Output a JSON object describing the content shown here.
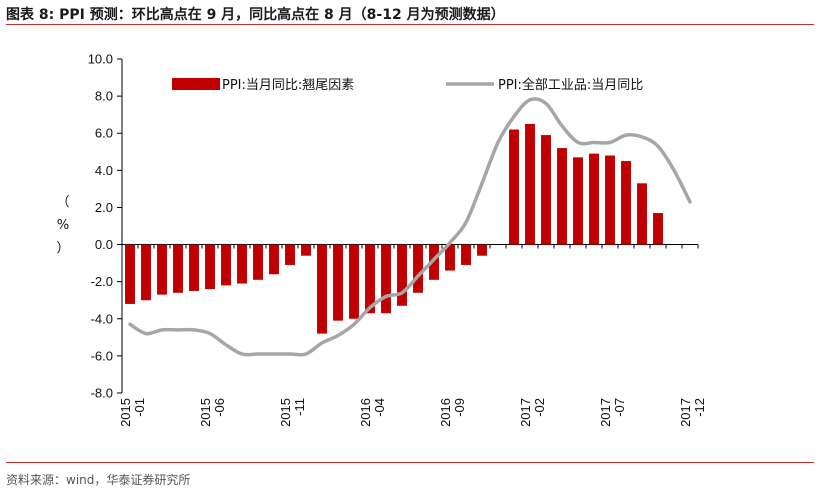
{
  "header": {
    "title": "图表 8:   PPI 预测：环比高点在 9 月，同比高点在 8 月（8-12 月为预测数据）"
  },
  "footer": {
    "source": "资料来源：wind，华泰证券研究所"
  },
  "colors": {
    "bar": "#c00000",
    "line": "#a6a6a6",
    "accent_rule": "#c8302c",
    "axis": "#000000"
  },
  "chart_data": {
    "type": "bar",
    "title": "PPI 预测：环比高点在 9 月，同比高点在 8 月（8-12 月为预测数据）",
    "ylabel": "（%）",
    "ylabel_chars": [
      "（",
      "%",
      "）"
    ],
    "ylim": [
      -8.0,
      10.0
    ],
    "yticks": [
      -8.0,
      -6.0,
      -4.0,
      -2.0,
      0.0,
      2.0,
      4.0,
      6.0,
      8.0,
      10.0
    ],
    "ytick_labels": [
      "-8.0",
      "-6.0",
      "-4.0",
      "-2.0",
      "0.0",
      "2.0",
      "4.0",
      "6.0",
      "8.0",
      "10.0"
    ],
    "categories": [
      "2015-01",
      "2015-02",
      "2015-03",
      "2015-04",
      "2015-05",
      "2015-06",
      "2015-07",
      "2015-08",
      "2015-09",
      "2015-10",
      "2015-11",
      "2015-12",
      "2016-01",
      "2016-02",
      "2016-03",
      "2016-04",
      "2016-05",
      "2016-06",
      "2016-07",
      "2016-08",
      "2016-09",
      "2016-10",
      "2016-11",
      "2016-12",
      "2017-01",
      "2017-02",
      "2017-03",
      "2017-04",
      "2017-05",
      "2017-06",
      "2017-07",
      "2017-08",
      "2017-09",
      "2017-10",
      "2017-11",
      "2017-12"
    ],
    "xtick_labels": [
      {
        "index": 0,
        "year": "2015",
        "month": "-01"
      },
      {
        "index": 5,
        "year": "2015",
        "month": "-06"
      },
      {
        "index": 10,
        "year": "2015",
        "month": "-11"
      },
      {
        "index": 15,
        "year": "2016",
        "month": "-04"
      },
      {
        "index": 20,
        "year": "2016",
        "month": "-09"
      },
      {
        "index": 25,
        "year": "2017",
        "month": "-02"
      },
      {
        "index": 30,
        "year": "2017",
        "month": "-07"
      },
      {
        "index": 35,
        "year": "2017",
        "month": "-12"
      }
    ],
    "series": [
      {
        "name": "PPI:当月同比:翘尾因素",
        "type": "bar",
        "values": [
          -3.2,
          -3.0,
          -2.7,
          -2.6,
          -2.5,
          -2.4,
          -2.2,
          -2.1,
          -1.9,
          -1.6,
          -1.1,
          -0.6,
          -4.8,
          -4.1,
          -4.0,
          -3.7,
          -3.7,
          -3.3,
          -2.6,
          -1.9,
          -1.4,
          -1.1,
          -0.6,
          null,
          6.2,
          6.5,
          5.9,
          5.2,
          4.7,
          4.9,
          4.8,
          4.5,
          3.3,
          1.7,
          null,
          null
        ]
      },
      {
        "name": "PPI:全部工业品:当月同比",
        "type": "line",
        "values": [
          -4.3,
          -4.8,
          -4.6,
          -4.6,
          -4.6,
          -4.8,
          -5.4,
          -5.9,
          -5.9,
          -5.9,
          -5.9,
          -5.9,
          -5.3,
          -4.9,
          -4.3,
          -3.4,
          -2.8,
          -2.6,
          -1.7,
          -0.8,
          0.1,
          1.2,
          3.3,
          5.5,
          6.9,
          7.8,
          7.6,
          6.4,
          5.5,
          5.5,
          5.5,
          5.9,
          5.8,
          5.3,
          4.0,
          2.3
        ]
      }
    ],
    "legend": {
      "placement": "top"
    }
  }
}
